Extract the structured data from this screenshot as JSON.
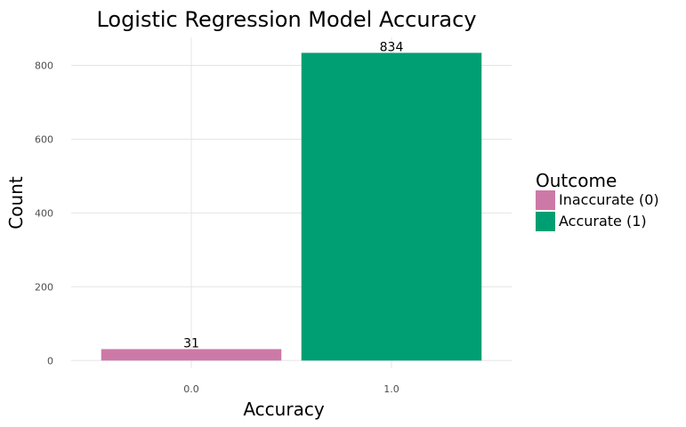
{
  "chart_data": {
    "type": "bar",
    "title": "Logistic Regression Model Accuracy",
    "xlabel": "Accuracy",
    "ylabel": "Count",
    "categories": [
      "0.0",
      "1.0"
    ],
    "values": [
      31,
      834
    ],
    "data_labels": [
      "31",
      "834"
    ],
    "colors": [
      "#cc79a7",
      "#009e73"
    ],
    "ylim": [
      -21,
      876
    ],
    "yticks": [
      0,
      200,
      400,
      600,
      800
    ],
    "grid": true,
    "legend": {
      "title": "Outcome",
      "placement": "right",
      "entries": [
        {
          "label": "Inaccurate (0)",
          "color": "#cc79a7"
        },
        {
          "label": "Accurate (1)",
          "color": "#009e73"
        }
      ]
    }
  }
}
